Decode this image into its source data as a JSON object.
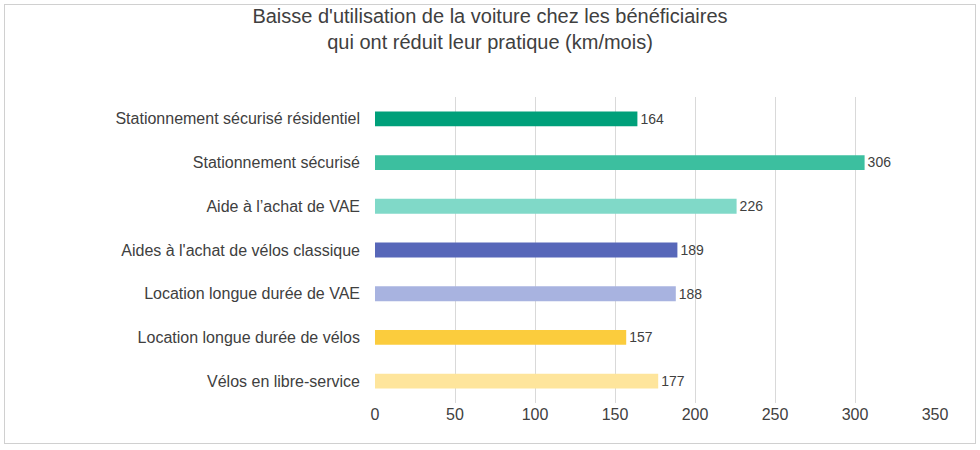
{
  "chart_data": {
    "type": "bar",
    "orientation": "horizontal",
    "title": "Baisse d'utilisation de la voiture chez les bénéficiaires qui ont réduit leur pratique (km/mois)",
    "categories": [
      "Stationnement sécurisé résidentiel",
      "Stationnement sécurisé",
      "Aide à l’achat de VAE",
      "Aides à l'achat de vélos classique",
      "Location longue durée de VAE",
      "Location longue durée de vélos",
      "Vélos en libre-service"
    ],
    "values": [
      164,
      306,
      226,
      189,
      188,
      157,
      177
    ],
    "colors": [
      "#00a07a",
      "#3cbf9f",
      "#80d9c8",
      "#5767b9",
      "#a8b3e0",
      "#fbcc3d",
      "#fee59c"
    ],
    "xlim": [
      0,
      350
    ],
    "xticks": [
      0,
      50,
      100,
      150,
      200,
      250,
      300,
      350
    ],
    "grid": true,
    "data_labels": true
  }
}
